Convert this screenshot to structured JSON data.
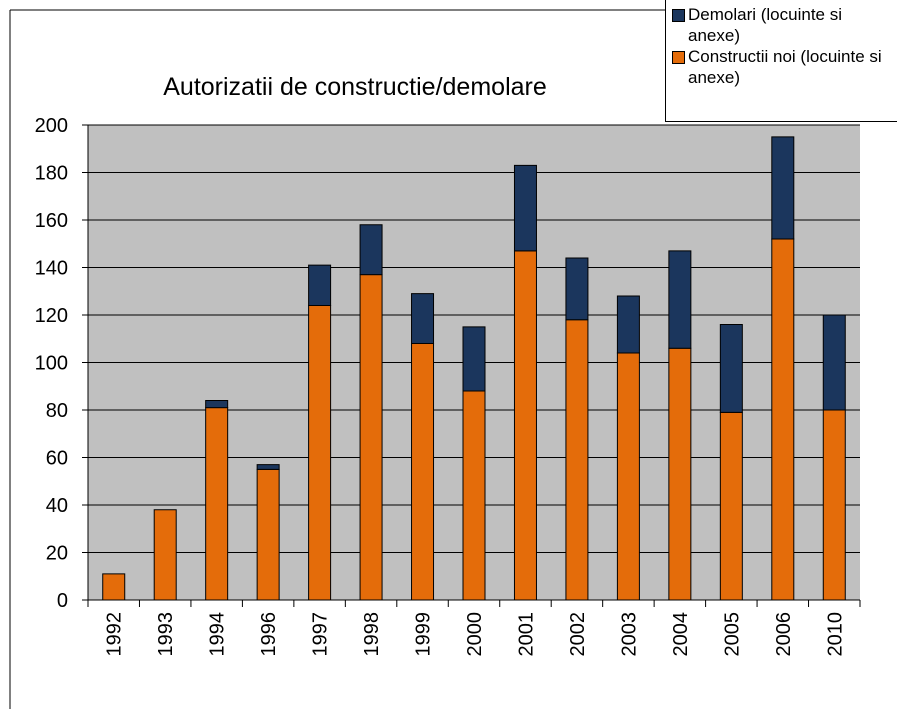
{
  "chart_data": {
    "type": "stacked_bar",
    "title": "Autorizatii de constructie/demolare",
    "categories": [
      "1992",
      "1993",
      "1994",
      "1996",
      "1997",
      "1998",
      "1999",
      "2000",
      "2001",
      "2002",
      "2003",
      "2004",
      "2005",
      "2006",
      "2010"
    ],
    "series": [
      {
        "name": "Demolari (locuinte si anexe)",
        "color": "#1b365d",
        "values": [
          0,
          0,
          3,
          2,
          17,
          21,
          21,
          27,
          36,
          26,
          24,
          41,
          37,
          43,
          40
        ]
      },
      {
        "name": "Constructii noi (locuinte si anexe)",
        "color": "#e46c0a",
        "values": [
          11,
          38,
          81,
          55,
          124,
          137,
          108,
          88,
          147,
          118,
          104,
          106,
          79,
          152,
          80
        ]
      }
    ],
    "ylim": [
      0,
      200
    ],
    "yticks": [
      0,
      20,
      40,
      60,
      80,
      100,
      120,
      140,
      160,
      180,
      200
    ],
    "grid": true,
    "legend": "top-right"
  }
}
